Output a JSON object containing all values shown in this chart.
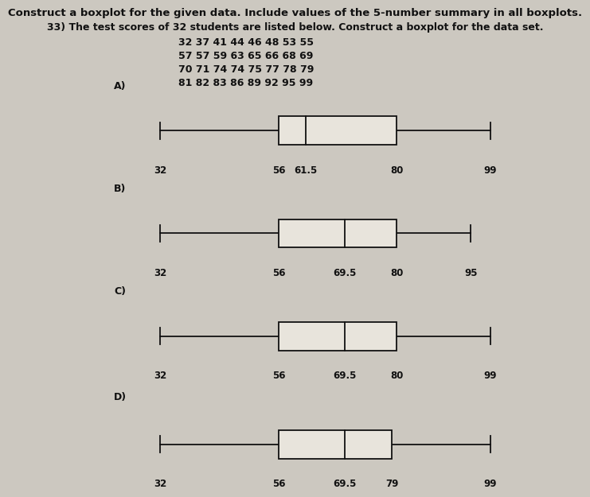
{
  "title_line1": "Construct a boxplot for the given data. Include values of the 5-number summary in all boxplots.",
  "title_line2": "33) The test scores of 32 students are listed below. Construct a boxplot for the data set.",
  "data_lines": [
    "32 37 41 44 46 48 53 55",
    "57 57 59 63 65 66 68 69",
    "70 71 74 74 75 77 78 79",
    "81 82 83 86 89 92 95 99"
  ],
  "boxplots": [
    {
      "label": "A)",
      "min": 32,
      "q1": 56,
      "median": 61.5,
      "q3": 80,
      "max": 99
    },
    {
      "label": "B)",
      "min": 32,
      "q1": 56,
      "median": 69.5,
      "q3": 80,
      "max": 95
    },
    {
      "label": "C)",
      "min": 32,
      "q1": 56,
      "median": 69.5,
      "q3": 80,
      "max": 99
    },
    {
      "label": "D)",
      "min": 32,
      "q1": 56,
      "median": 69.5,
      "q3": 79,
      "max": 99
    }
  ],
  "xlim": [
    22,
    108
  ],
  "background_color": "#ccc8c0",
  "box_facecolor": "#e8e4dc",
  "line_color": "#111111",
  "text_color": "#111111",
  "title_fontsize": 9.5,
  "body_fontsize": 9.0,
  "label_fontsize": 9.0,
  "tick_fontsize": 8.5
}
